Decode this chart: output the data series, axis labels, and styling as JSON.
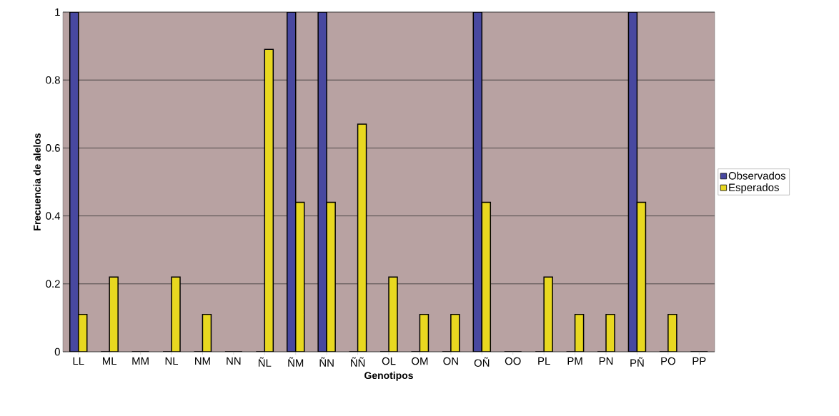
{
  "chart_data": {
    "type": "bar",
    "xlabel": "Genotipos",
    "ylabel": "Frecuencia de alelos",
    "categories": [
      "LL",
      "ML",
      "MM",
      "NL",
      "NM",
      "NN",
      "ÑL",
      "ÑM",
      "ÑN",
      "ÑÑ",
      "OL",
      "OM",
      "ON",
      "OÑ",
      "OO",
      "PL",
      "PM",
      "PN",
      "PÑ",
      "PO",
      "PP"
    ],
    "series": [
      {
        "name": "Observados",
        "color": "#4848a0",
        "values": [
          1,
          0,
          0,
          0,
          0,
          0,
          0,
          1,
          1,
          0,
          0,
          0,
          0,
          1,
          0,
          0,
          0,
          0,
          1,
          0,
          0
        ]
      },
      {
        "name": "Esperados",
        "color": "#e8d820",
        "values": [
          0.11,
          0.22,
          0,
          0.22,
          0.11,
          0,
          0.89,
          0.44,
          0.44,
          0.67,
          0.22,
          0.11,
          0.11,
          0.44,
          0,
          0.22,
          0.11,
          0.11,
          0.44,
          0.11,
          0
        ]
      }
    ],
    "ylim": [
      0,
      1
    ],
    "yticks": [
      0,
      0.2,
      0.4,
      0.6,
      0.8,
      1
    ],
    "grid": "y",
    "legend": "right"
  }
}
